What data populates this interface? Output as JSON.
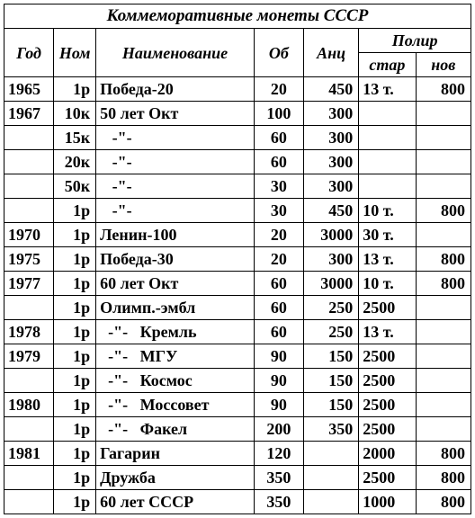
{
  "title": "Коммеморативные монеты СССР",
  "columns": {
    "year": "Год",
    "nom": "Ном",
    "name": "Наименование",
    "ob": "Об",
    "anc": "Анц",
    "polir": "Полир",
    "star": "стар",
    "nov": "нов"
  },
  "rows": [
    {
      "year": "1965",
      "nom": "1р",
      "name": "Победа-20",
      "ob": "20",
      "anc": "450",
      "star": "13 т.",
      "nov": "800"
    },
    {
      "year": "1967",
      "nom": "10к",
      "name": "50 лет Окт",
      "ob": "100",
      "anc": "300",
      "star": "",
      "nov": ""
    },
    {
      "year": "",
      "nom": "15к",
      "name": "   -\"-",
      "ob": "60",
      "anc": "300",
      "star": "",
      "nov": ""
    },
    {
      "year": "",
      "nom": "20к",
      "name": "   -\"-",
      "ob": "60",
      "anc": "300",
      "star": "",
      "nov": ""
    },
    {
      "year": "",
      "nom": "50к",
      "name": "   -\"-",
      "ob": "30",
      "anc": "300",
      "star": "",
      "nov": ""
    },
    {
      "year": "",
      "nom": "1р",
      "name": "   -\"-",
      "ob": "30",
      "anc": "450",
      "star": "10 т.",
      "nov": "800"
    },
    {
      "year": "1970",
      "nom": "1р",
      "name": "Ленин-100",
      "ob": "20",
      "anc": "3000",
      "star": "30 т.",
      "nov": ""
    },
    {
      "year": "1975",
      "nom": "1р",
      "name": "Победа-30",
      "ob": "20",
      "anc": "300",
      "star": "13 т.",
      "nov": "800"
    },
    {
      "year": "1977",
      "nom": "1р",
      "name": "60 лет Окт",
      "ob": "60",
      "anc": "3000",
      "star": "10 т.",
      "nov": "800"
    },
    {
      "year": "",
      "nom": "1р",
      "name": "Олимп.-эмбл",
      "ob": "60",
      "anc": "250",
      "star": "2500",
      "nov": ""
    },
    {
      "year": "1978",
      "nom": "1р",
      "name": "  -\"-   Кремль",
      "ob": "60",
      "anc": "250",
      "star": "13 т.",
      "nov": ""
    },
    {
      "year": "1979",
      "nom": "1р",
      "name": "  -\"-   МГУ",
      "ob": "90",
      "anc": "150",
      "star": "2500",
      "nov": ""
    },
    {
      "year": "",
      "nom": "1р",
      "name": "  -\"-   Космос",
      "ob": "90",
      "anc": "150",
      "star": "2500",
      "nov": ""
    },
    {
      "year": "1980",
      "nom": "1р",
      "name": "  -\"-   Моссовет",
      "ob": "90",
      "anc": "150",
      "star": "2500",
      "nov": ""
    },
    {
      "year": "",
      "nom": "1р",
      "name": "  -\"-   Факел",
      "ob": "200",
      "anc": "350",
      "star": "2500",
      "nov": ""
    },
    {
      "year": "1981",
      "nom": "1р",
      "name": "Гагарин",
      "ob": "120",
      "anc": "",
      "star": "2000",
      "nov": "800"
    },
    {
      "year": "",
      "nom": "1р",
      "name": "Дружба",
      "ob": "350",
      "anc": "",
      "star": "2500",
      "nov": "800"
    },
    {
      "year": "",
      "nom": "1р",
      "name": "60 лет СССР",
      "ob": "350",
      "anc": "",
      "star": "1000",
      "nov": "800"
    }
  ]
}
